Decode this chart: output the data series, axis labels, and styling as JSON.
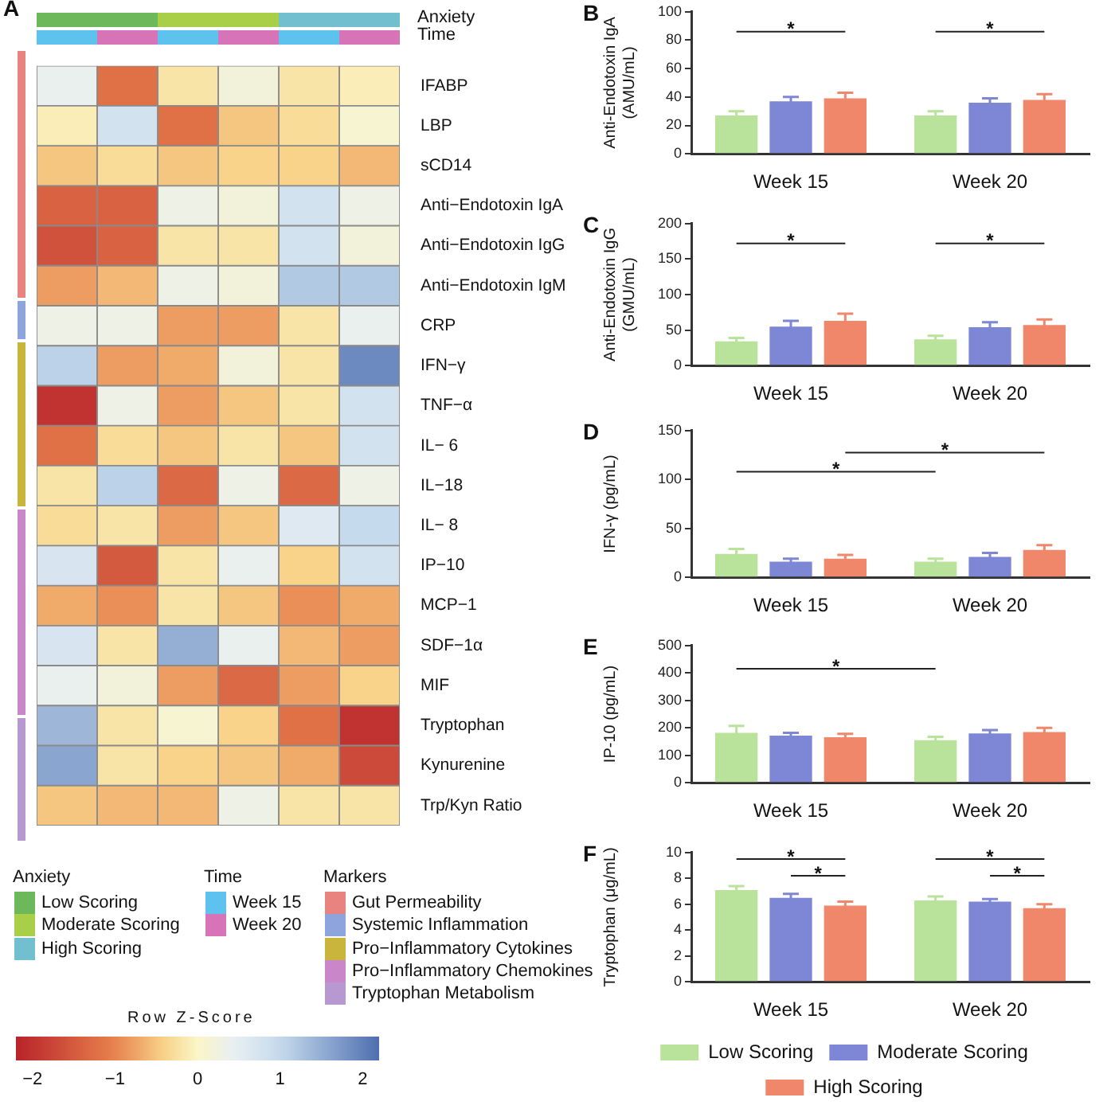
{
  "chart_data": [
    {
      "type": "heatmap",
      "title": "A",
      "categories": [
        null,
        null,
        null,
        null,
        null,
        null
      ],
      "y_categories": [
        "IFABP",
        "LBP",
        "sCD14",
        "Anti−Endotoxin IgA",
        "Anti−Endotoxin IgG",
        "Anti−Endotoxin IgM",
        "CRP",
        "IFN−γ",
        "TNF−α",
        "IL− 6",
        "IL−18",
        "IL− 8",
        "IP−10",
        "MCP−1",
        "SDF−1α",
        "MIF",
        "Tryptophan",
        "Kynurenine",
        "Trp/Kyn Ratio"
      ],
      "cells": [
        [
          0.4,
          -1.2,
          -0.2,
          0.2,
          -0.2,
          -0.1
        ],
        [
          -0.1,
          0.8,
          -1.2,
          -0.5,
          -0.3,
          0.1
        ],
        [
          -0.5,
          -0.3,
          -0.5,
          -0.4,
          -0.4,
          -0.6
        ],
        [
          -1.4,
          -1.4,
          0.3,
          0.2,
          0.8,
          0.3
        ],
        [
          -1.6,
          -1.4,
          -0.2,
          -0.2,
          0.8,
          0.2
        ],
        [
          -0.8,
          -0.6,
          0.3,
          0.2,
          1.2,
          1.2
        ],
        [
          0.3,
          0.3,
          -0.8,
          -0.8,
          -0.2,
          0.4
        ],
        [
          1.1,
          -0.8,
          -0.7,
          0.2,
          -0.2,
          1.9
        ],
        [
          -2.0,
          0.3,
          -0.8,
          -0.5,
          -0.2,
          0.8
        ],
        [
          -1.2,
          -0.3,
          -0.5,
          -0.2,
          -0.5,
          0.8
        ],
        [
          -0.2,
          1.1,
          -1.3,
          0.3,
          -1.3,
          0.3
        ],
        [
          -0.3,
          -0.2,
          -0.8,
          -0.5,
          0.6,
          1.0
        ],
        [
          0.7,
          -1.5,
          -0.2,
          0.4,
          -0.4,
          0.8
        ],
        [
          -0.7,
          -0.9,
          -0.2,
          -0.5,
          -0.9,
          -0.7
        ],
        [
          0.7,
          -0.2,
          1.5,
          0.4,
          -0.6,
          -0.8
        ],
        [
          0.4,
          0.2,
          -0.8,
          -1.3,
          -0.8,
          -0.4
        ],
        [
          1.4,
          -0.2,
          0.1,
          -0.4,
          -1.2,
          -2.0
        ],
        [
          1.6,
          -0.2,
          -0.4,
          -0.5,
          -0.7,
          -1.7
        ],
        [
          -0.5,
          -0.6,
          -0.6,
          0.3,
          -0.2,
          -0.2
        ]
      ],
      "clim": [
        -2.2,
        2.2
      ],
      "cticks": [
        -2,
        -1,
        0,
        1,
        2
      ],
      "clabel": "Row Z-Score",
      "annotations": [
        "Anxiety",
        "Time",
        "Anxiety",
        "Low Scoring",
        "Moderate Scoring",
        "High Scoring",
        "Time",
        "Week 15",
        "Week 20",
        "Markers",
        "Gut Permeability",
        "Systemic Inflammation",
        "Pro−Inflammatory Cytokines",
        "Pro−Inflammatory Chemokines",
        "Tryptophan Metabolism"
      ]
    },
    {
      "type": "bar",
      "title": "B",
      "categories": [
        "Week 15",
        "Week 20"
      ],
      "ylabel": "Anti-Endotoxin IgA (AMU/mL)",
      "ylim": [
        0,
        100
      ],
      "yticks": [
        0,
        20,
        40,
        60,
        80,
        100
      ],
      "series": [
        {
          "color": "#b9e39b",
          "values": [
            27,
            27
          ],
          "errors": [
            3,
            3
          ]
        },
        {
          "color": "#7e86d6",
          "values": [
            37,
            36
          ],
          "errors": [
            3,
            3
          ]
        },
        {
          "color": "#f0876a",
          "values": [
            39,
            38
          ],
          "errors": [
            4,
            4
          ]
        }
      ],
      "annotations": [
        "*",
        "*"
      ]
    },
    {
      "type": "bar",
      "title": "C",
      "categories": [
        "Week 15",
        "Week 20"
      ],
      "ylabel": "Anti-Endotoxin IgG (GMU/mL)",
      "ylim": [
        0,
        200
      ],
      "yticks": [
        0,
        50,
        100,
        150,
        200
      ],
      "series": [
        {
          "color": "#b9e39b",
          "values": [
            34,
            37
          ],
          "errors": [
            5,
            5
          ]
        },
        {
          "color": "#7e86d6",
          "values": [
            55,
            54
          ],
          "errors": [
            8,
            7
          ]
        },
        {
          "color": "#f0876a",
          "values": [
            63,
            57
          ],
          "errors": [
            10,
            8
          ]
        }
      ],
      "annotations": [
        "*",
        "*"
      ]
    },
    {
      "type": "bar",
      "title": "D",
      "categories": [
        "Week 15",
        "Week 20"
      ],
      "ylabel": "IFN-γ (pg/mL)",
      "ylim": [
        0,
        150
      ],
      "yticks": [
        0,
        50,
        100,
        150
      ],
      "series": [
        {
          "color": "#b9e39b",
          "values": [
            24,
            16
          ],
          "errors": [
            5,
            3
          ]
        },
        {
          "color": "#7e86d6",
          "values": [
            16,
            21
          ],
          "errors": [
            3,
            4
          ]
        },
        {
          "color": "#f0876a",
          "values": [
            19,
            28
          ],
          "errors": [
            4,
            5
          ]
        }
      ],
      "annotations": [
        "*",
        "*"
      ]
    },
    {
      "type": "bar",
      "title": "E",
      "categories": [
        "Week 15",
        "Week 20"
      ],
      "ylabel": "IP-10 (pg/mL)",
      "ylim": [
        0,
        500
      ],
      "yticks": [
        0,
        100,
        200,
        300,
        400,
        500
      ],
      "series": [
        {
          "color": "#b9e39b",
          "values": [
            182,
            155
          ],
          "errors": [
            25,
            12
          ]
        },
        {
          "color": "#7e86d6",
          "values": [
            172,
            180
          ],
          "errors": [
            10,
            12
          ]
        },
        {
          "color": "#f0876a",
          "values": [
            166,
            185
          ],
          "errors": [
            12,
            15
          ]
        }
      ],
      "annotations": [
        "*"
      ]
    },
    {
      "type": "bar",
      "title": "F",
      "categories": [
        "Week 15",
        "Week 20"
      ],
      "ylabel": "Tryptophan (μg/mL)",
      "ylim": [
        0,
        10
      ],
      "yticks": [
        0,
        2,
        4,
        6,
        8,
        10
      ],
      "legend": "bottom",
      "series": [
        {
          "name": "Low Scoring",
          "color": "#b9e39b",
          "values": [
            7.1,
            6.3
          ],
          "errors": [
            0.3,
            0.3
          ]
        },
        {
          "name": "Moderate Scoring",
          "color": "#7e86d6",
          "values": [
            6.5,
            6.2
          ],
          "errors": [
            0.3,
            0.2
          ]
        },
        {
          "name": "High Scoring",
          "color": "#f0876a",
          "values": [
            5.9,
            5.7
          ],
          "errors": [
            0.3,
            0.3
          ]
        }
      ],
      "annotations": [
        "*",
        "*",
        "*",
        "*"
      ]
    }
  ]
}
